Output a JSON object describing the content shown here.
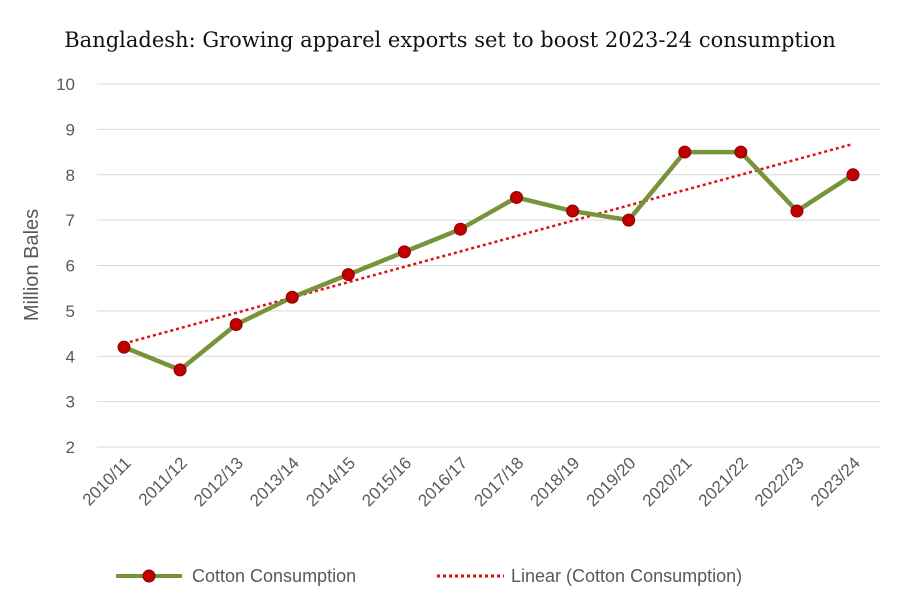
{
  "chart_data": {
    "type": "line",
    "title": "Bangladesh: Growing apparel exports set to boost 2023-24 consumption",
    "xlabel": "",
    "ylabel": "Million Bales",
    "ylim": [
      2,
      10
    ],
    "yticks": [
      2,
      3,
      4,
      5,
      6,
      7,
      8,
      9,
      10
    ],
    "grid": true,
    "legend_position": "bottom",
    "categories": [
      "2010/11",
      "2011/12",
      "2012/13",
      "2013/14",
      "2014/15",
      "2015/16",
      "2016/17",
      "2017/18",
      "2018/19",
      "2019/20",
      "2020/21",
      "2021/22",
      "2022/23",
      "2023/24"
    ],
    "series": [
      {
        "name": "Cotton Consumption",
        "values": [
          4.2,
          3.7,
          4.7,
          5.3,
          5.8,
          6.3,
          6.8,
          7.5,
          7.2,
          7.0,
          8.5,
          8.5,
          7.2,
          8.0
        ],
        "line_color": "#77933c",
        "marker_color": "#c00000"
      }
    ],
    "trendline": {
      "name": "Linear (Cotton Consumption)",
      "type": "linear",
      "color": "#e01010"
    }
  }
}
